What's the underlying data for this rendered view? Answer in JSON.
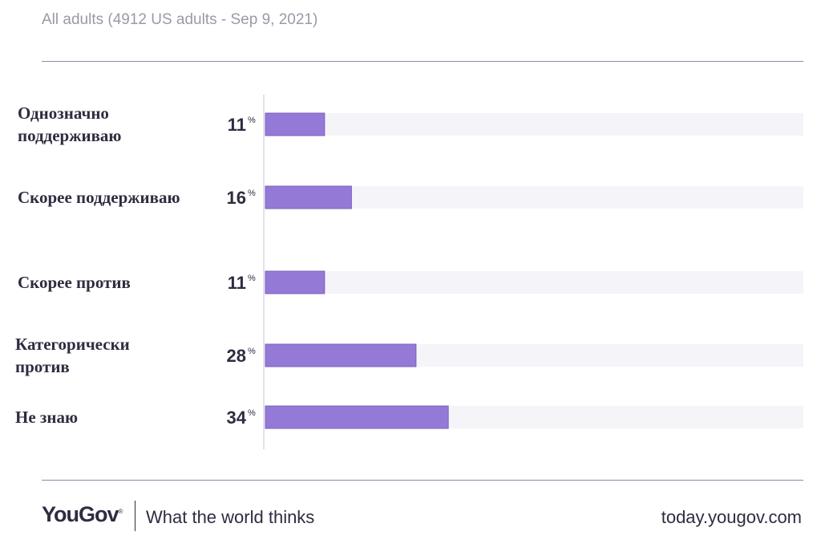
{
  "header": {
    "subtitle": "All adults (4912 US adults - Sep 9, 2021)"
  },
  "chart_data": {
    "type": "bar",
    "orientation": "horizontal",
    "categories": [
      [
        "Однозначно",
        "поддерживаю"
      ],
      [
        "Скорее поддерживаю"
      ],
      [
        "Скорее против"
      ],
      [
        "Категорически",
        "против"
      ],
      [
        "Не знаю"
      ]
    ],
    "values": [
      11,
      16,
      11,
      28,
      34
    ],
    "value_labels": [
      "11",
      "16",
      "11",
      "28",
      "34"
    ],
    "unit": "%",
    "xlim": [
      0,
      100
    ],
    "colors": {
      "bar": "#9479d6",
      "bar_border": "#7a62bf",
      "track": "#f5f4f9",
      "axis": "#e2e0ea"
    }
  },
  "footer": {
    "logo": "YouGov",
    "logo_mark": "®",
    "tagline": "What the world thinks",
    "url": "today.yougov.com"
  }
}
